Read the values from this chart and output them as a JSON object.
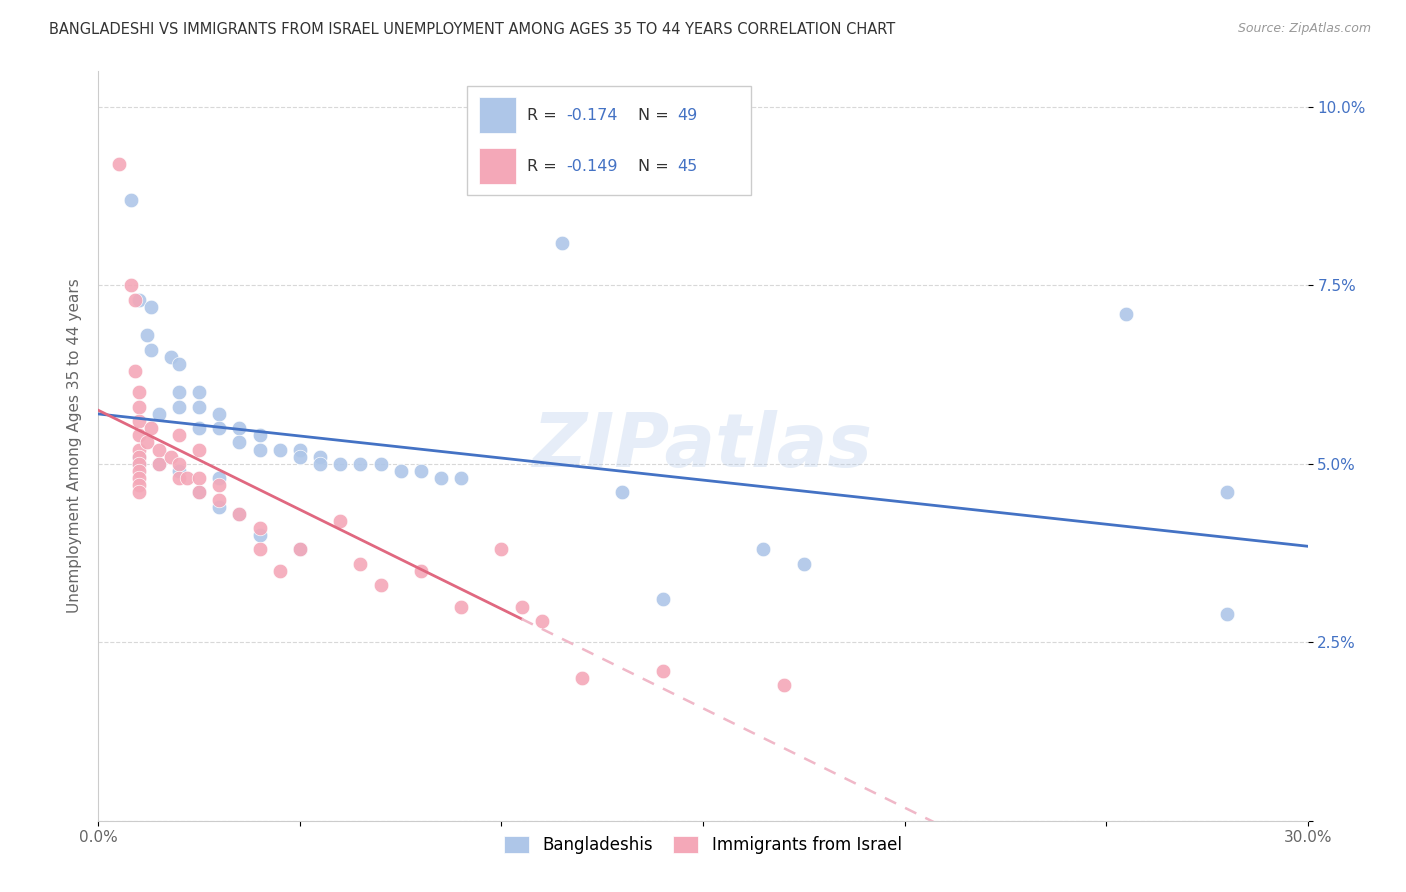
{
  "title": "BANGLADESHI VS IMMIGRANTS FROM ISRAEL UNEMPLOYMENT AMONG AGES 35 TO 44 YEARS CORRELATION CHART",
  "source": "Source: ZipAtlas.com",
  "ylabel": "Unemployment Among Ages 35 to 44 years",
  "xmin": 0.0,
  "xmax": 0.3,
  "ymin": 0.0,
  "ymax": 0.105,
  "yticks": [
    0.0,
    0.025,
    0.05,
    0.075,
    0.1
  ],
  "ytick_labels": [
    "",
    "2.5%",
    "5.0%",
    "7.5%",
    "10.0%"
  ],
  "xticks": [
    0.0,
    0.05,
    0.1,
    0.15,
    0.2,
    0.25,
    0.3
  ],
  "xtick_labels": [
    "0.0%",
    "",
    "",
    "",
    "",
    "",
    "30.0%"
  ],
  "watermark": "ZIPatlas",
  "blue_scatter": [
    [
      0.008,
      0.087
    ],
    [
      0.01,
      0.073
    ],
    [
      0.013,
      0.072
    ],
    [
      0.012,
      0.068
    ],
    [
      0.013,
      0.066
    ],
    [
      0.018,
      0.065
    ],
    [
      0.02,
      0.064
    ],
    [
      0.02,
      0.06
    ],
    [
      0.025,
      0.06
    ],
    [
      0.015,
      0.057
    ],
    [
      0.02,
      0.058
    ],
    [
      0.025,
      0.058
    ],
    [
      0.03,
      0.057
    ],
    [
      0.025,
      0.055
    ],
    [
      0.03,
      0.055
    ],
    [
      0.035,
      0.055
    ],
    [
      0.04,
      0.054
    ],
    [
      0.035,
      0.053
    ],
    [
      0.04,
      0.052
    ],
    [
      0.045,
      0.052
    ],
    [
      0.05,
      0.052
    ],
    [
      0.05,
      0.051
    ],
    [
      0.055,
      0.051
    ],
    [
      0.055,
      0.05
    ],
    [
      0.06,
      0.05
    ],
    [
      0.065,
      0.05
    ],
    [
      0.07,
      0.05
    ],
    [
      0.075,
      0.049
    ],
    [
      0.08,
      0.049
    ],
    [
      0.085,
      0.048
    ],
    [
      0.09,
      0.048
    ],
    [
      0.01,
      0.051
    ],
    [
      0.01,
      0.05
    ],
    [
      0.015,
      0.05
    ],
    [
      0.02,
      0.049
    ],
    [
      0.03,
      0.048
    ],
    [
      0.025,
      0.046
    ],
    [
      0.03,
      0.044
    ],
    [
      0.035,
      0.043
    ],
    [
      0.04,
      0.04
    ],
    [
      0.05,
      0.038
    ],
    [
      0.115,
      0.081
    ],
    [
      0.13,
      0.046
    ],
    [
      0.165,
      0.038
    ],
    [
      0.175,
      0.036
    ],
    [
      0.255,
      0.071
    ],
    [
      0.28,
      0.046
    ],
    [
      0.28,
      0.029
    ],
    [
      0.14,
      0.031
    ]
  ],
  "pink_scatter": [
    [
      0.005,
      0.092
    ],
    [
      0.008,
      0.075
    ],
    [
      0.009,
      0.073
    ],
    [
      0.009,
      0.063
    ],
    [
      0.01,
      0.06
    ],
    [
      0.01,
      0.058
    ],
    [
      0.01,
      0.056
    ],
    [
      0.01,
      0.054
    ],
    [
      0.01,
      0.052
    ],
    [
      0.01,
      0.051
    ],
    [
      0.01,
      0.05
    ],
    [
      0.01,
      0.049
    ],
    [
      0.01,
      0.048
    ],
    [
      0.01,
      0.047
    ],
    [
      0.01,
      0.046
    ],
    [
      0.012,
      0.053
    ],
    [
      0.013,
      0.055
    ],
    [
      0.015,
      0.052
    ],
    [
      0.015,
      0.05
    ],
    [
      0.018,
      0.051
    ],
    [
      0.02,
      0.054
    ],
    [
      0.02,
      0.05
    ],
    [
      0.02,
      0.048
    ],
    [
      0.022,
      0.048
    ],
    [
      0.025,
      0.052
    ],
    [
      0.025,
      0.048
    ],
    [
      0.025,
      0.046
    ],
    [
      0.03,
      0.047
    ],
    [
      0.03,
      0.045
    ],
    [
      0.035,
      0.043
    ],
    [
      0.04,
      0.041
    ],
    [
      0.04,
      0.038
    ],
    [
      0.045,
      0.035
    ],
    [
      0.05,
      0.038
    ],
    [
      0.06,
      0.042
    ],
    [
      0.065,
      0.036
    ],
    [
      0.07,
      0.033
    ],
    [
      0.08,
      0.035
    ],
    [
      0.09,
      0.03
    ],
    [
      0.1,
      0.038
    ],
    [
      0.105,
      0.03
    ],
    [
      0.11,
      0.028
    ],
    [
      0.12,
      0.02
    ],
    [
      0.14,
      0.021
    ],
    [
      0.17,
      0.019
    ]
  ],
  "blue_line_color": "#4472c4",
  "pink_line_color": "#e06880",
  "pink_dash_color": "#f0b8c8",
  "blue_marker_color": "#aec6e8",
  "pink_marker_color": "#f4a8b8",
  "background_color": "#ffffff",
  "grid_color": "#d8d8d8"
}
